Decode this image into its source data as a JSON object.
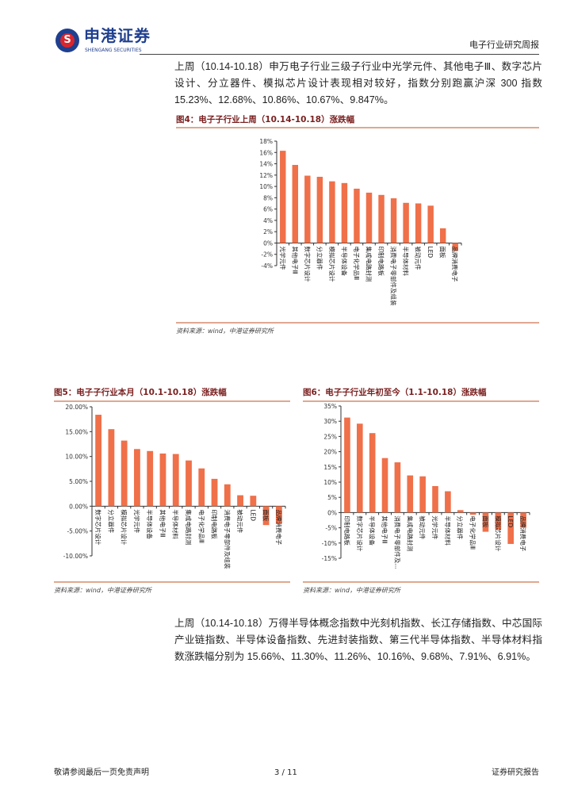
{
  "header": {
    "logo_cn": "申港证券",
    "logo_en": "SHENGANG SECURITIES",
    "logo_glyph": "S",
    "report_type": "电子行业研究周报"
  },
  "para1": "上周（10.14-10.18）申万电子行业三级子行业中光学元件、其他电子Ⅲ、数字芯片设计、分立器件、模拟芯片设计表现相对较好，指数分别跑赢沪深 300 指数 15.23%、12.68%、10.86%、10.67%、9.847%。",
  "para2": "上周（10.14-10.18）万得半导体概念指数中光刻机指数、长江存储指数、中芯国际产业链指数、半导体设备指数、先进封装指数、第三代半导体指数、半导体材料指数涨跌幅分别为 15.66%、11.30%、11.26%、10.16%、9.68%、7.91%、6.91%。",
  "colors": {
    "bar": "#ef7049",
    "title": "#7a1f1f",
    "rule": "#e0a890"
  },
  "chart_data": [
    {
      "type": "bar",
      "title": "图4：电子子行业上周（10.14-10.18）涨跌幅",
      "source": "资料来源：wind，中港证券研究所",
      "categories": [
        "光学元件",
        "其他电子Ⅲ",
        "数字芯片设计",
        "分立器件",
        "模拟芯片设计",
        "半导体设备",
        "电子化学品Ⅲ",
        "集成电路封测",
        "印制电路板",
        "消费电子零部件及组装",
        "半导体材料",
        "被动元件",
        "LED",
        "面板",
        "品牌消费电子"
      ],
      "values": [
        16.3,
        13.8,
        11.9,
        11.7,
        10.9,
        10.6,
        9.6,
        8.9,
        8.5,
        7.9,
        7.1,
        7.0,
        6.6,
        2.6,
        -1.4
      ],
      "ylim": [
        -4,
        18
      ],
      "yticks": [
        "-4%",
        "-2%",
        "0%",
        "2%",
        "4%",
        "6%",
        "8%",
        "10%",
        "12%",
        "14%",
        "16%",
        "18%"
      ],
      "grid": false
    },
    {
      "type": "bar",
      "title": "图5：电子子行业本月（10.1-10.18）涨跌幅",
      "source": "资料来源：wind，中港证券研究所",
      "categories": [
        "数字芯片设计",
        "分立器件",
        "模拟芯片设计",
        "光学元件",
        "半导体设备",
        "其他电子Ⅲ",
        "半导体材料",
        "集成电路封测",
        "电子化学品Ⅲ",
        "印制电路板",
        "消费电子零部件及组装",
        "被动元件",
        "LED",
        "面板",
        "品牌消费电子"
      ],
      "values": [
        18.4,
        15.5,
        13.2,
        11.5,
        11.1,
        10.6,
        10.5,
        9.2,
        7.6,
        5.5,
        4.4,
        2.2,
        2.1,
        -3.8,
        -3.5
      ],
      "ylim": [
        -10,
        20
      ],
      "yticks": [
        "-10.00%",
        "-5.00%",
        "0.00%",
        "5.00%",
        "10.00%",
        "15.00%",
        "20.00%"
      ],
      "grid": false
    },
    {
      "type": "bar",
      "title": "图6：电子子行业年初至今（1.1-10.18）涨跌幅",
      "source": "资料来源：wind，中港证券研究所",
      "categories": [
        "印制电路板",
        "数字芯片设计",
        "半导体设备",
        "其他电子Ⅲ",
        "消费电子零部件及...",
        "集成电路封测",
        "被动元件",
        "光学元件",
        "半导体材料",
        "分立器件",
        "电子化学品Ⅲ",
        "面板",
        "模拟芯片设计",
        "LED",
        "品牌消费电子"
      ],
      "values": [
        31.2,
        29.2,
        26.1,
        17.9,
        16.5,
        12.2,
        11.9,
        8.7,
        7.0,
        0.8,
        -0.7,
        -6.3,
        -5.5,
        -10.3,
        -5.0
      ],
      "ylim": [
        -15,
        35
      ],
      "yticks": [
        "-15%",
        "-10%",
        "-5%",
        "0%",
        "5%",
        "10%",
        "15%",
        "20%",
        "25%",
        "30%",
        "35%"
      ],
      "grid": false
    }
  ],
  "footer": {
    "left": "敬请参阅最后一页免责声明",
    "page": "3 / 11",
    "right": "证券研究报告"
  }
}
